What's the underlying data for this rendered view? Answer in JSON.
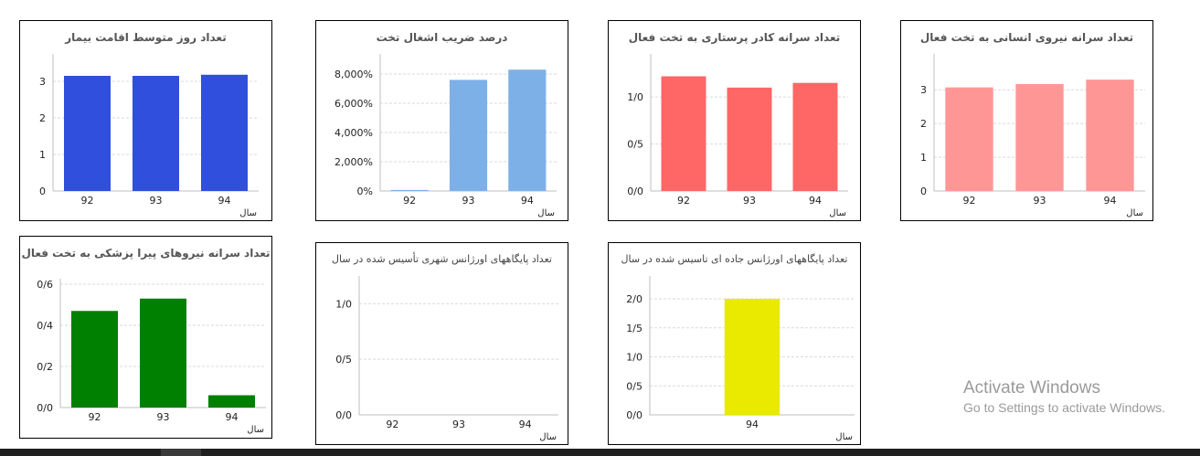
{
  "chart_data": [
    {
      "id": "c1",
      "type": "bar",
      "title": "تعداد روز متوسط اقامت بیمار",
      "categories": [
        "92",
        "93",
        "94"
      ],
      "values": [
        3.15,
        3.15,
        3.18
      ],
      "ylim": [
        0,
        3.6
      ],
      "yticks": [
        "0",
        "1",
        "2",
        "3"
      ],
      "ytickvals": [
        0,
        1,
        2,
        3
      ],
      "xlabel": "سال",
      "color": "#2f4fdc",
      "grid": true
    },
    {
      "id": "c2",
      "type": "bar",
      "title": "درصد ضریب اشغال تخت",
      "categories": [
        "92",
        "93",
        "94"
      ],
      "values": [
        70,
        7600,
        8300
      ],
      "ylim": [
        0,
        9000
      ],
      "yticks": [
        "0%",
        "2,000%",
        "4,000%",
        "6,000%",
        "8,000%"
      ],
      "ytickvals": [
        0,
        2000,
        4000,
        6000,
        8000
      ],
      "xlabel": "سال",
      "color": "#7eb0e8",
      "grid": true
    },
    {
      "id": "c3",
      "type": "bar",
      "title": "تعداد سرانه کادر پرستاری به تخت فعال",
      "categories": [
        "92",
        "93",
        "94"
      ],
      "values": [
        1.22,
        1.1,
        1.15
      ],
      "ylim": [
        0,
        1.4
      ],
      "yticks": [
        "0/0",
        "0/5",
        "1/0"
      ],
      "ytickvals": [
        0,
        0.5,
        1.0
      ],
      "xlabel": "سال",
      "color": "#ff6666",
      "grid": true
    },
    {
      "id": "c4",
      "type": "bar",
      "title": "تعداد سرانه نیروی انسانی به تخت فعال",
      "categories": [
        "92",
        "93",
        "94"
      ],
      "values": [
        3.07,
        3.17,
        3.3
      ],
      "ylim": [
        0,
        3.9
      ],
      "yticks": [
        "0",
        "1",
        "2",
        "3"
      ],
      "ytickvals": [
        0,
        1,
        2,
        3
      ],
      "xlabel": "سال",
      "color": "#ff9696",
      "grid": true
    },
    {
      "id": "c5",
      "type": "bar",
      "title": "تعداد سرانه نیروهای پیرا پزشکی به تخت فعال",
      "categories": [
        "92",
        "93",
        "94"
      ],
      "values": [
        0.47,
        0.53,
        0.06
      ],
      "ylim": [
        0,
        0.6
      ],
      "yticks": [
        "0/0",
        "0/2",
        "0/4",
        "0/6"
      ],
      "ytickvals": [
        0,
        0.2,
        0.4,
        0.6
      ],
      "xlabel": "سال",
      "color": "#008000",
      "grid": true
    },
    {
      "id": "c6",
      "type": "bar",
      "title": "تعداد پایگاههای اورژانس شهری  تأسیس شده در سال",
      "categories": [
        "92",
        "93",
        "94"
      ],
      "values": [
        0,
        0,
        0
      ],
      "ylim": [
        0,
        1.2
      ],
      "yticks": [
        "0/0",
        "0/5",
        "1/0"
      ],
      "ytickvals": [
        0,
        0.5,
        1.0
      ],
      "xlabel": "سال",
      "color": "#cccccc",
      "grid": true
    },
    {
      "id": "c7",
      "type": "bar",
      "title": "تعداد پایگاههای اورژانس جاده ای تاسیس شده در سال",
      "categories": [
        "94"
      ],
      "values": [
        2.0
      ],
      "ylim": [
        0,
        2.3
      ],
      "yticks": [
        "0/0",
        "0/5",
        "1/0",
        "1/5",
        "2/0"
      ],
      "ytickvals": [
        0,
        0.5,
        1.0,
        1.5,
        2.0
      ],
      "xlabel": "سال",
      "color": "#eaea00",
      "grid": true
    }
  ],
  "watermark": {
    "line1": "Activate Windows",
    "line2": "Go to Settings to activate Windows."
  }
}
